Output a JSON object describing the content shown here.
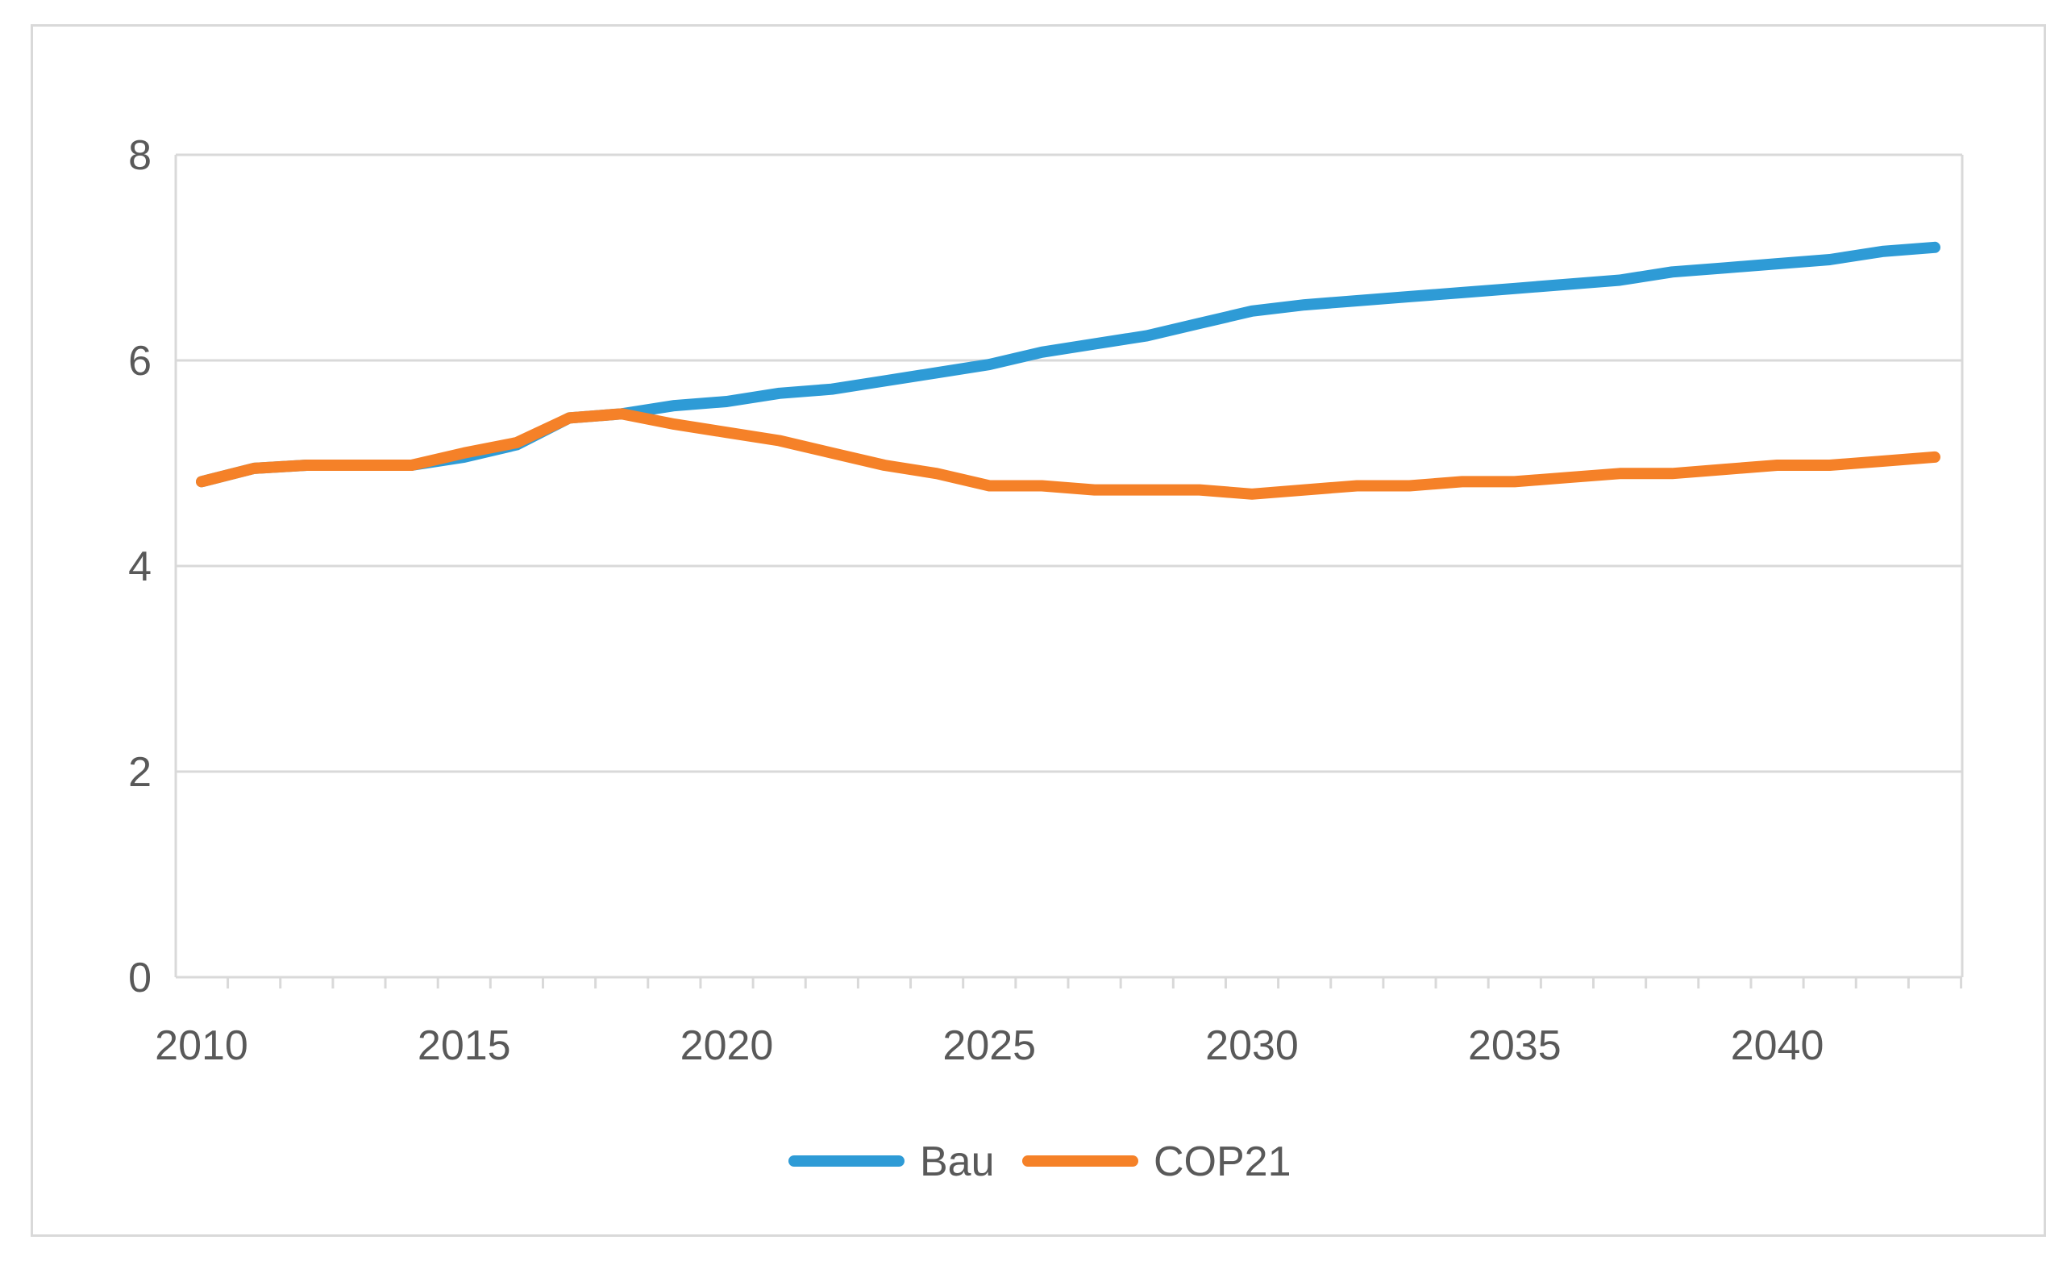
{
  "chart_data": {
    "type": "line",
    "title": "",
    "xlabel": "",
    "ylabel": "",
    "xlim": [
      2010,
      2043
    ],
    "ylim": [
      0,
      8
    ],
    "grid": true,
    "legend": "bottom-center",
    "x": [
      2010,
      2011,
      2012,
      2013,
      2014,
      2015,
      2016,
      2017,
      2018,
      2019,
      2020,
      2021,
      2022,
      2023,
      2024,
      2025,
      2026,
      2027,
      2028,
      2029,
      2030,
      2031,
      2032,
      2033,
      2034,
      2035,
      2036,
      2037,
      2038,
      2039,
      2040,
      2041,
      2042,
      2043
    ],
    "x_tick_labels": [
      "2010",
      "2015",
      "2020",
      "2025",
      "2030",
      "2035",
      "2040"
    ],
    "x_tick_values": [
      2010,
      2015,
      2020,
      2025,
      2030,
      2035,
      2040
    ],
    "y_tick_labels": [
      "0",
      "2",
      "4",
      "6",
      "8"
    ],
    "y_tick_values": [
      0,
      2,
      4,
      6,
      8
    ],
    "series": [
      {
        "name": "Bau",
        "color": "#2e9bd6",
        "values": [
          4.82,
          4.95,
          4.98,
          4.98,
          4.98,
          5.06,
          5.18,
          5.44,
          5.48,
          5.56,
          5.6,
          5.68,
          5.72,
          5.8,
          5.88,
          5.96,
          6.08,
          6.16,
          6.24,
          6.36,
          6.48,
          6.54,
          6.58,
          6.62,
          6.66,
          6.7,
          6.74,
          6.78,
          6.86,
          6.9,
          6.94,
          6.98,
          7.06,
          7.1
        ]
      },
      {
        "name": "COP21",
        "color": "#f58128",
        "values": [
          4.82,
          4.95,
          4.98,
          4.98,
          4.98,
          5.1,
          5.2,
          5.44,
          5.48,
          5.38,
          5.3,
          5.22,
          5.1,
          4.98,
          4.9,
          4.78,
          4.78,
          4.74,
          4.74,
          4.74,
          4.7,
          4.74,
          4.78,
          4.78,
          4.82,
          4.82,
          4.86,
          4.9,
          4.9,
          4.94,
          4.98,
          4.98,
          5.02,
          5.06
        ]
      }
    ]
  }
}
